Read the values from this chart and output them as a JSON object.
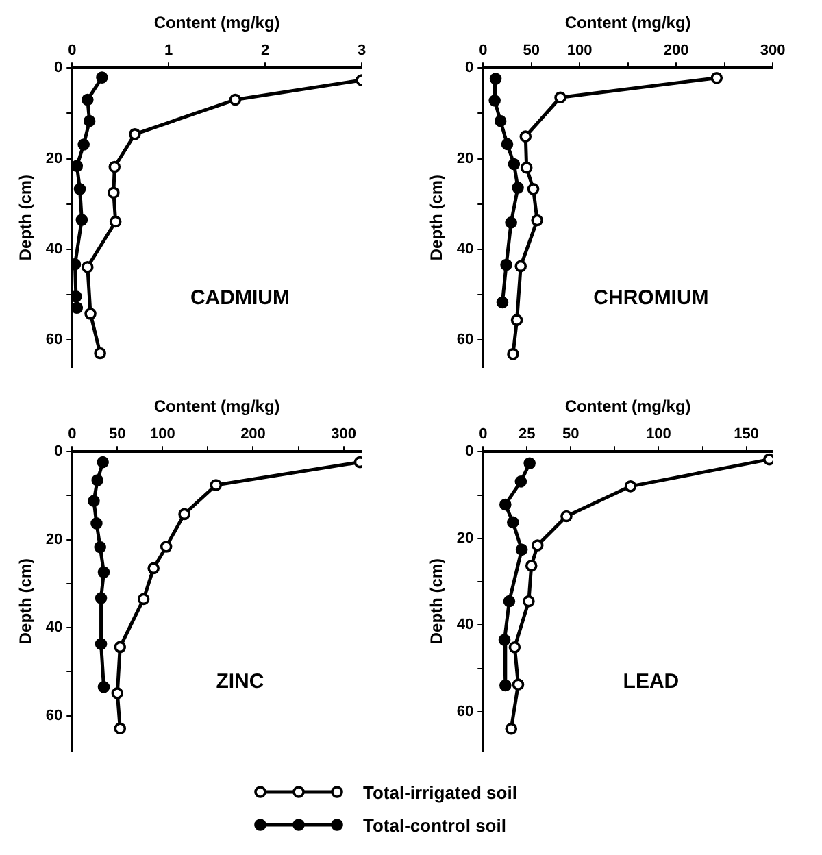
{
  "chart_data": [
    {
      "type": "line",
      "title": "CADMIUM",
      "xlabel": "Content (mg/kg)",
      "ylabel": "Depth (cm)",
      "marker": "circle",
      "line_style": "solid",
      "xlim": [
        0,
        3
      ],
      "xticks": [
        0,
        1,
        2,
        3
      ],
      "ylim": [
        66,
        0
      ],
      "yticks": [
        0,
        {
          "value": 10,
          "label": null
        },
        20,
        {
          "value": 30,
          "label": null
        },
        40,
        {
          "value": 50,
          "label": null
        },
        60
      ],
      "series": [
        {
          "color": "#000000",
          "x": [
            3.0,
            1.69,
            0.65,
            0.44,
            0.43,
            0.45,
            0.16,
            0.19,
            0.29
          ],
          "values": [
            2.7,
            7.0,
            14.6,
            21.8,
            27.5,
            33.9,
            43.9,
            54.2,
            62.9
          ]
        },
        {
          "color": "#000000",
          "x": [
            0.31,
            0.16,
            0.18,
            0.12,
            0.05,
            0.08,
            0.1,
            0.03,
            0.04,
            0.05
          ],
          "values": [
            2.1,
            7.0,
            11.7,
            16.9,
            21.6,
            26.7,
            33.5,
            43.3,
            50.4,
            52.9
          ]
        }
      ]
    },
    {
      "type": "line",
      "title": "CHROMIUM",
      "xlabel": "Content (mg/kg)",
      "ylabel": "Depth (cm)",
      "marker": "circle",
      "line_style": "solid",
      "xlim": [
        0,
        300
      ],
      "xticks": [
        0,
        50,
        100,
        {
          "value": 150,
          "label": null
        },
        200,
        {
          "value": 250,
          "label": null
        },
        300
      ],
      "ylim": [
        66,
        0
      ],
      "yticks": [
        0,
        {
          "value": 10,
          "label": null
        },
        20,
        {
          "value": 30,
          "label": null
        },
        40,
        {
          "value": 50,
          "label": null
        },
        60
      ],
      "series": [
        {
          "color": "#000000",
          "x": [
            242,
            80,
            44,
            45,
            52,
            56,
            39,
            35,
            31
          ],
          "values": [
            2.2,
            6.5,
            15.1,
            22.0,
            26.7,
            33.6,
            43.7,
            55.6,
            63.1
          ]
        },
        {
          "color": "#000000",
          "x": [
            13,
            12,
            18,
            25,
            32,
            36,
            29,
            24,
            20
          ],
          "values": [
            2.4,
            7.2,
            11.7,
            16.8,
            21.2,
            26.4,
            34.1,
            43.4,
            51.7
          ]
        }
      ]
    },
    {
      "type": "line",
      "title": "ZINC",
      "xlabel": "Content (mg/kg)",
      "ylabel": "Depth (cm)",
      "marker": "circle",
      "line_style": "solid",
      "xlim": [
        0,
        320
      ],
      "xticks": [
        0,
        50,
        100,
        {
          "value": 150,
          "label": null
        },
        200,
        {
          "value": 250,
          "label": null
        },
        300
      ],
      "ylim": [
        68,
        0
      ],
      "yticks": [
        0,
        {
          "value": 10,
          "label": null
        },
        20,
        {
          "value": 30,
          "label": null
        },
        40,
        {
          "value": 50,
          "label": null
        },
        60
      ],
      "series": [
        {
          "color": "#000000",
          "x": [
            318,
            159,
            124,
            104,
            90,
            79,
            53,
            50,
            53
          ],
          "values": [
            2.4,
            7.6,
            14.2,
            21.6,
            26.5,
            33.5,
            44.4,
            54.9,
            62.9
          ]
        },
        {
          "color": "#000000",
          "x": [
            34,
            28,
            24,
            27,
            31,
            35,
            32,
            32,
            35
          ],
          "values": [
            2.4,
            6.5,
            11.2,
            16.3,
            21.7,
            27.4,
            33.3,
            43.7,
            53.5
          ]
        }
      ]
    },
    {
      "type": "line",
      "title": "LEAD",
      "xlabel": "Content (mg/kg)",
      "ylabel": "Depth (cm)",
      "marker": "circle",
      "line_style": "solid",
      "legend": "bottom",
      "xlim": [
        0,
        165
      ],
      "xticks": [
        0,
        25,
        50,
        {
          "value": 75,
          "label": null
        },
        100,
        {
          "value": 125,
          "label": null
        },
        150
      ],
      "ylim": [
        69,
        0
      ],
      "yticks": [
        0,
        {
          "value": 10,
          "label": null
        },
        20,
        {
          "value": 30,
          "label": null
        },
        40,
        {
          "value": 50,
          "label": null
        },
        60
      ],
      "series": [
        {
          "name": "Total-irrigated soil",
          "color": "#000000",
          "x": [
            163,
            84,
            47.5,
            31,
            27.5,
            26,
            18,
            20,
            16
          ],
          "values": [
            1.8,
            8.0,
            14.9,
            21.6,
            26.3,
            34.5,
            45.1,
            53.7,
            63.9
          ]
        },
        {
          "name": "Total-control soil",
          "color": "#000000",
          "x": [
            26.5,
            21.5,
            12.7,
            17,
            22,
            14.9,
            12.2,
            12.7
          ],
          "values": [
            2.7,
            6.9,
            12.2,
            16.3,
            22.6,
            34.5,
            43.4,
            53.9
          ]
        }
      ]
    }
  ]
}
